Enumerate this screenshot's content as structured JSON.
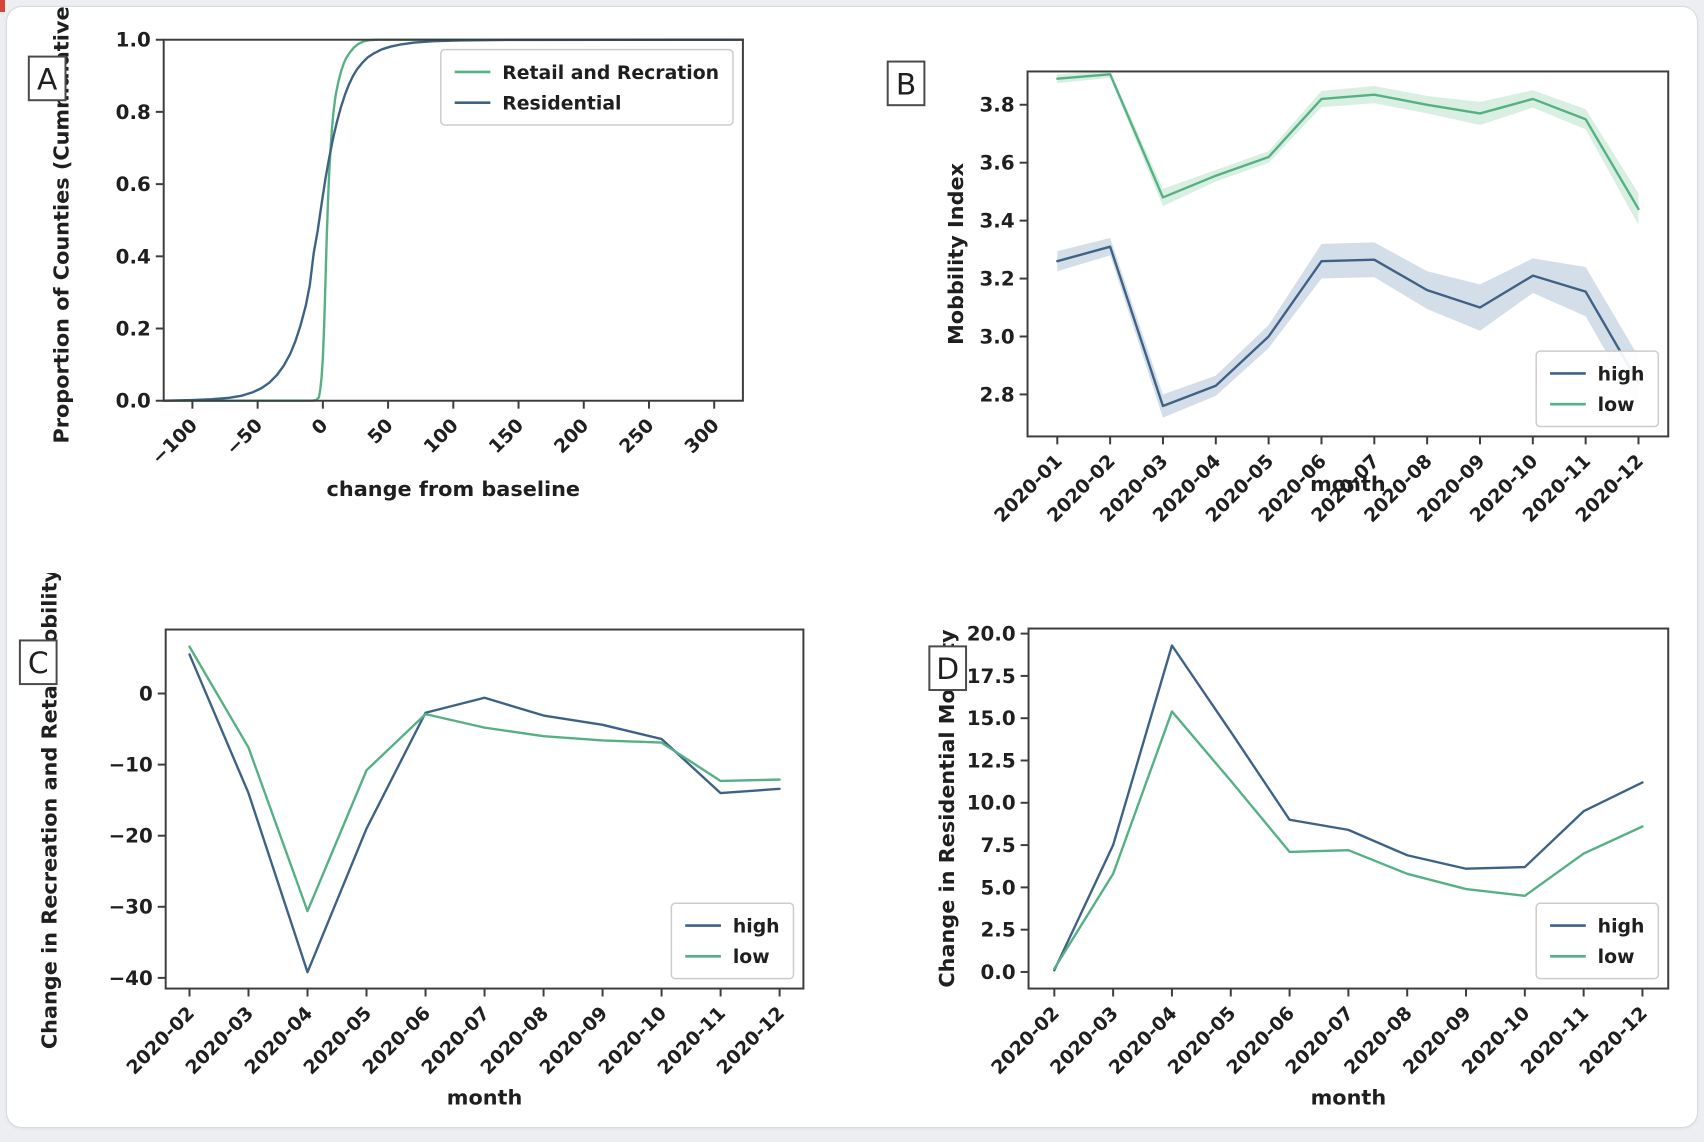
{
  "page": {
    "background": "#eceef1",
    "card_bg": "#ffffff",
    "card_border": "#d7dadd",
    "artifact_color": "#d04538"
  },
  "colors": {
    "high": "#3e6285",
    "low": "#55b184",
    "high_band": "#b7c8da",
    "low_band": "#bfe4cf",
    "spine": "#3d3d3d",
    "text": "#1f1f1f",
    "legend_border": "#cccccc"
  },
  "chart_data": [
    {
      "panel": "A",
      "type": "line",
      "xlabel": "change from baseline",
      "ylabel": "Proportion of Counties (Cummulative)",
      "xlim": [
        -122,
        322
      ],
      "ylim": [
        0,
        1.0
      ],
      "grid": false,
      "xticks": [
        {
          "v": -100,
          "t": "−100"
        },
        {
          "v": -50,
          "t": "−50"
        },
        {
          "v": 0,
          "t": "0"
        },
        {
          "v": 50,
          "t": "50"
        },
        {
          "v": 100,
          "t": "100"
        },
        {
          "v": 150,
          "t": "150"
        },
        {
          "v": 200,
          "t": "200"
        },
        {
          "v": 250,
          "t": "250"
        },
        {
          "v": 300,
          "t": "300"
        }
      ],
      "yticks": [
        {
          "v": 0.0,
          "t": "0.0"
        },
        {
          "v": 0.2,
          "t": "0.2"
        },
        {
          "v": 0.4,
          "t": "0.4"
        },
        {
          "v": 0.6,
          "t": "0.6"
        },
        {
          "v": 0.8,
          "t": "0.8"
        },
        {
          "v": 1.0,
          "t": "1.0"
        }
      ],
      "legend": {
        "position": "upper right",
        "entries": [
          {
            "label": "Retail and Recration",
            "series": "low"
          },
          {
            "label": "Residential",
            "series": "high"
          }
        ]
      },
      "series": [
        {
          "name": "Retail and Recration",
          "color_key": "low",
          "points": [
            [
              -122,
              0
            ],
            [
              -8,
              0
            ],
            [
              -5,
              0.002
            ],
            [
              -3,
              0.01
            ],
            [
              -2,
              0.03
            ],
            [
              -1,
              0.065
            ],
            [
              0,
              0.12
            ],
            [
              1,
              0.21
            ],
            [
              2,
              0.33
            ],
            [
              3,
              0.455
            ],
            [
              4,
              0.555
            ],
            [
              5,
              0.64
            ],
            [
              6,
              0.705
            ],
            [
              7,
              0.755
            ],
            [
              8,
              0.795
            ],
            [
              9,
              0.825
            ],
            [
              10,
              0.85
            ],
            [
              12,
              0.886
            ],
            [
              14,
              0.913
            ],
            [
              16,
              0.934
            ],
            [
              18,
              0.95
            ],
            [
              21,
              0.966
            ],
            [
              24,
              0.979
            ],
            [
              27,
              0.988
            ],
            [
              31,
              0.995
            ],
            [
              36,
              0.999
            ],
            [
              42,
              1.0
            ],
            [
              322,
              1.0
            ]
          ]
        },
        {
          "name": "Residential",
          "color_key": "high",
          "points": [
            [
              -122,
              0
            ],
            [
              -100,
              0.002
            ],
            [
              -85,
              0.004
            ],
            [
              -72,
              0.008
            ],
            [
              -62,
              0.014
            ],
            [
              -54,
              0.023
            ],
            [
              -47,
              0.035
            ],
            [
              -41,
              0.05
            ],
            [
              -35,
              0.072
            ],
            [
              -30,
              0.097
            ],
            [
              -25,
              0.13
            ],
            [
              -21,
              0.165
            ],
            [
              -17,
              0.21
            ],
            [
              -13,
              0.265
            ],
            [
              -10,
              0.32
            ],
            [
              -7,
              0.41
            ],
            [
              -4,
              0.47
            ],
            [
              -1,
              0.545
            ],
            [
              2,
              0.615
            ],
            [
              5,
              0.675
            ],
            [
              8,
              0.73
            ],
            [
              11,
              0.775
            ],
            [
              14,
              0.815
            ],
            [
              17,
              0.848
            ],
            [
              20,
              0.876
            ],
            [
              23,
              0.899
            ],
            [
              26,
              0.917
            ],
            [
              30,
              0.935
            ],
            [
              34,
              0.95
            ],
            [
              39,
              0.962
            ],
            [
              45,
              0.973
            ],
            [
              52,
              0.981
            ],
            [
              60,
              0.987
            ],
            [
              70,
              0.992
            ],
            [
              85,
              0.996
            ],
            [
              105,
              0.998
            ],
            [
              140,
              0.9995
            ],
            [
              322,
              1.0
            ]
          ]
        }
      ]
    },
    {
      "panel": "B",
      "type": "line",
      "xlabel": "month",
      "ylabel": "Mobbility Index",
      "categories": [
        "2020-01",
        "2020-02",
        "2020-03",
        "2020-04",
        "2020-05",
        "2020-06",
        "2020-07",
        "2020-08",
        "2020-09",
        "2020-10",
        "2020-11",
        "2020-12"
      ],
      "ylim": [
        2.655,
        3.915
      ],
      "grid": false,
      "yticks": [
        {
          "v": 2.8,
          "t": "2.8"
        },
        {
          "v": 3.0,
          "t": "3.0"
        },
        {
          "v": 3.2,
          "t": "3.2"
        },
        {
          "v": 3.4,
          "t": "3.4"
        },
        {
          "v": 3.6,
          "t": "3.6"
        },
        {
          "v": 3.8,
          "t": "3.8"
        }
      ],
      "legend": {
        "position": "lower right",
        "entries": [
          {
            "label": "high",
            "series": "high"
          },
          {
            "label": "low",
            "series": "low"
          }
        ]
      },
      "series": [
        {
          "name": "high",
          "color_key": "high",
          "values": [
            3.26,
            3.31,
            2.76,
            2.83,
            3.0,
            3.26,
            3.265,
            3.16,
            3.1,
            3.21,
            3.155,
            2.84
          ],
          "err": [
            0.035,
            0.03,
            0.04,
            0.035,
            0.04,
            0.06,
            0.06,
            0.065,
            0.08,
            0.06,
            0.085,
            0.09
          ]
        },
        {
          "name": "low",
          "color_key": "low",
          "values": [
            3.89,
            3.905,
            3.48,
            3.555,
            3.62,
            3.82,
            3.835,
            3.8,
            3.77,
            3.82,
            3.75,
            3.44
          ],
          "err": [
            0.015,
            0.012,
            0.03,
            0.02,
            0.02,
            0.028,
            0.03,
            0.03,
            0.04,
            0.03,
            0.035,
            0.055
          ]
        }
      ]
    },
    {
      "panel": "C",
      "type": "line",
      "xlabel": "month",
      "ylabel": "Change in Recreation and Retail Mobility",
      "categories": [
        "2020-02",
        "2020-03",
        "2020-04",
        "2020-05",
        "2020-06",
        "2020-07",
        "2020-08",
        "2020-09",
        "2020-10",
        "2020-11",
        "2020-12"
      ],
      "ylim": [
        -41.5,
        9.0
      ],
      "grid": false,
      "yticks": [
        {
          "v": 0,
          "t": "0"
        },
        {
          "v": -10,
          "t": "−10"
        },
        {
          "v": -20,
          "t": "−20"
        },
        {
          "v": -30,
          "t": "−30"
        },
        {
          "v": -40,
          "t": "−40"
        }
      ],
      "legend": {
        "position": "lower right",
        "entries": [
          {
            "label": "high",
            "series": "high"
          },
          {
            "label": "low",
            "series": "low"
          }
        ]
      },
      "series": [
        {
          "name": "high",
          "color_key": "high",
          "values": [
            5.5,
            -14.0,
            -39.2,
            -19.0,
            -2.7,
            -0.6,
            -3.1,
            -4.4,
            -6.4,
            -14.0,
            -13.4
          ]
        },
        {
          "name": "low",
          "color_key": "low",
          "values": [
            6.6,
            -7.6,
            -30.6,
            -10.8,
            -2.9,
            -4.8,
            -6.0,
            -6.6,
            -6.9,
            -12.3,
            -12.1
          ]
        }
      ]
    },
    {
      "panel": "D",
      "type": "line",
      "xlabel": "month",
      "ylabel": "Change in Residential Mobility",
      "categories": [
        "2020-02",
        "2020-03",
        "2020-04",
        "2020-05",
        "2020-06",
        "2020-07",
        "2020-08",
        "2020-09",
        "2020-10",
        "2020-11",
        "2020-12"
      ],
      "ylim": [
        -0.98,
        20.3
      ],
      "grid": false,
      "yticks": [
        {
          "v": 0.0,
          "t": "0.0"
        },
        {
          "v": 2.5,
          "t": "2.5"
        },
        {
          "v": 5.0,
          "t": "5.0"
        },
        {
          "v": 7.5,
          "t": "7.5"
        },
        {
          "v": 10.0,
          "t": "10.0"
        },
        {
          "v": 12.5,
          "t": "12.5"
        },
        {
          "v": 15.0,
          "t": "15.0"
        },
        {
          "v": 17.5,
          "t": "17.5"
        },
        {
          "v": 20.0,
          "t": "20.0"
        }
      ],
      "legend": {
        "position": "lower right",
        "entries": [
          {
            "label": "high",
            "series": "high"
          },
          {
            "label": "low",
            "series": "low"
          }
        ]
      },
      "series": [
        {
          "name": "high",
          "color_key": "high",
          "values": [
            0.1,
            7.5,
            19.3,
            14.2,
            9.0,
            8.4,
            6.9,
            6.1,
            6.2,
            9.5,
            11.2
          ]
        },
        {
          "name": "low",
          "color_key": "low",
          "values": [
            0.2,
            5.8,
            15.4,
            11.3,
            7.1,
            7.2,
            5.8,
            4.9,
            4.5,
            7.0,
            8.6
          ]
        }
      ]
    }
  ]
}
